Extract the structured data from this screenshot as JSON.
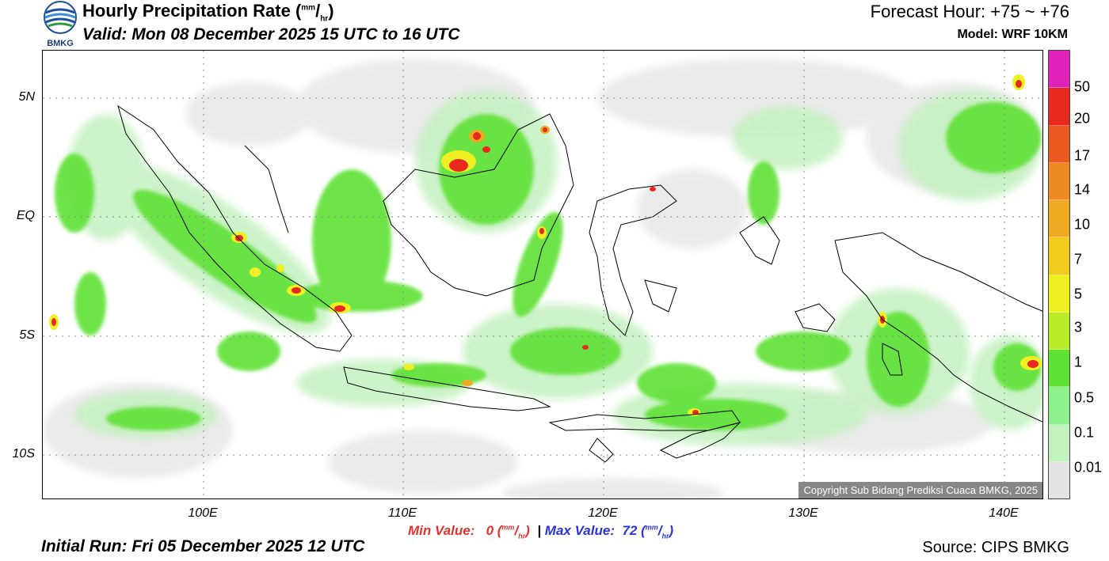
{
  "header": {
    "logo_text": "BMKG",
    "title_prefix": "Hourly Precipitation Rate (",
    "title_unit_num": "mm",
    "title_unit_den": "hr",
    "title_suffix": ")",
    "valid": "Valid: Mon 08 December 2025 15 UTC to 16 UTC",
    "forecast_hour": "Forecast Hour: +75 ~ +76",
    "model": "Model: WRF 10KM"
  },
  "axes": {
    "lat_labels": [
      "5N",
      "EQ",
      "5S",
      "10S"
    ],
    "lon_labels": [
      "100E",
      "110E",
      "120E",
      "130E",
      "140E"
    ]
  },
  "legend": {
    "labels": [
      "50",
      "20",
      "17",
      "14",
      "10",
      "7",
      "5",
      "3",
      "1",
      "0.5",
      "0.1",
      "0.01"
    ],
    "colors": [
      "#e021b8",
      "#e8291f",
      "#ec5a22",
      "#ee8a24",
      "#efaa23",
      "#f1cc1f",
      "#eef022",
      "#b8ec28",
      "#5fe134",
      "#8ef08a",
      "#c4f1c0",
      "#e4e4e4"
    ]
  },
  "footer": {
    "min_label": "Min Value:",
    "min_value": "0",
    "max_label": "Max Value:",
    "max_value": "72",
    "unit_num": "mm",
    "unit_den": "hr",
    "separator": "|",
    "initial_run": "Initial Run: Fri 05 December 2025 12 UTC",
    "source": "Source: CIPS BMKG"
  },
  "copyright": "Copyright Sub Bidang Prediksi Cuaca BMKG, 2025"
}
